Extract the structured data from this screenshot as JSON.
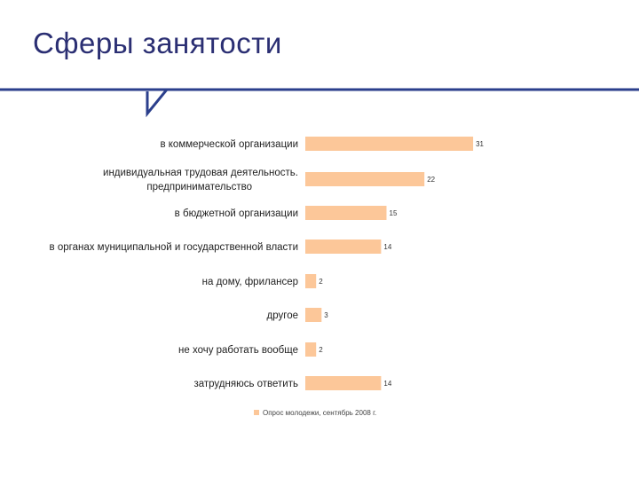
{
  "slide": {
    "title": "Сферы занятости",
    "accent_color": "#2b3f8c",
    "title_color": "#2b2f73"
  },
  "chart_data": {
    "type": "bar",
    "orientation": "horizontal",
    "categories": [
      [
        "в коммерческой организации"
      ],
      [
        "индивидуальная трудовая деятельность.",
        "предпринимательство"
      ],
      [
        "в бюджетной организации"
      ],
      [
        "в органах муниципальной и государственной власти"
      ],
      [
        "на дому, фрилансер"
      ],
      [
        "другое"
      ],
      [
        "не хочу работать вообще"
      ],
      [
        "затрудняюсь ответить"
      ]
    ],
    "series": [
      {
        "name": "Опрос молодежи, сентябрь 2008 г.",
        "values": [
          31,
          22,
          15,
          14,
          2,
          3,
          2,
          14
        ],
        "color": "#fcc799"
      }
    ],
    "grid": false,
    "legend_position": "bottom"
  }
}
